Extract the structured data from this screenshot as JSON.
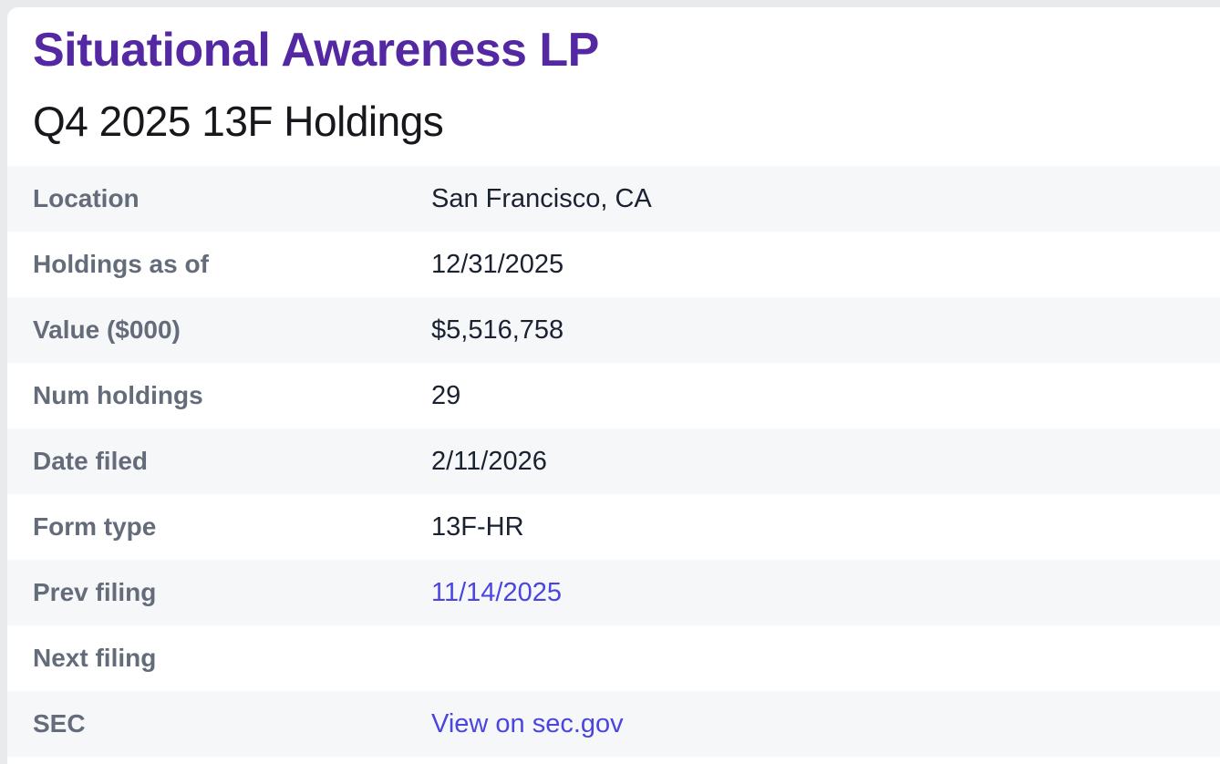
{
  "page": {
    "background_color": "#e9eaec",
    "card_background_color": "#ffffff"
  },
  "header": {
    "title": "Situational Awareness LP",
    "subtitle": "Q4 2025 13F Holdings",
    "title_color": "#5328a2"
  },
  "info_table": {
    "stripe_color": "#f6f7f9",
    "label_color": "#646c7a",
    "value_color": "#1a2130",
    "link_color": "#4a45e0",
    "rows": [
      {
        "label": "Location",
        "value": "San Francisco, CA",
        "type": "text"
      },
      {
        "label": "Holdings as of",
        "value": "12/31/2025",
        "type": "text"
      },
      {
        "label": "Value ($000)",
        "value": "$5,516,758",
        "type": "text"
      },
      {
        "label": "Num holdings",
        "value": "29",
        "type": "text"
      },
      {
        "label": "Date filed",
        "value": "2/11/2026",
        "type": "text"
      },
      {
        "label": "Form type",
        "value": "13F-HR",
        "type": "text"
      },
      {
        "label": "Prev filing",
        "value": "11/14/2025",
        "type": "link",
        "link_name": "prev-filing-link"
      },
      {
        "label": "Next filing",
        "value": "",
        "type": "text"
      },
      {
        "label": "SEC",
        "value": "View on sec.gov",
        "type": "link",
        "link_name": "sec-gov-link"
      }
    ]
  }
}
